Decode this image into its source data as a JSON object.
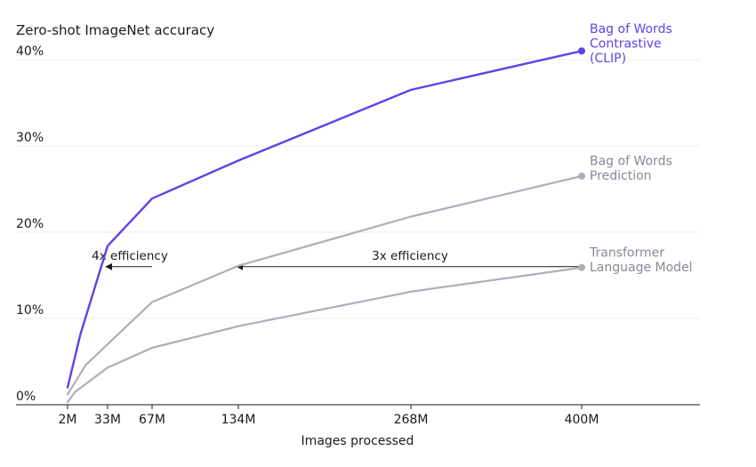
{
  "chart_data": {
    "type": "line",
    "title": "Zero-shot ImageNet accuracy",
    "xlabel": "Images processed",
    "ylabel": "",
    "x_ticks": [
      "2M",
      "33M",
      "67M",
      "134M",
      "268M",
      "400M"
    ],
    "y_ticks": [
      "0%",
      "10%",
      "20%",
      "30%",
      "40%"
    ],
    "ylim": [
      0,
      40
    ],
    "grid": true,
    "series": [
      {
        "name": "Bag of Words Contrastive (CLIP)",
        "name_lines": [
          "Bag of Words",
          "Contrastive",
          "(CLIP)"
        ],
        "color": "#5a45e8",
        "x": [
          2,
          12,
          33,
          67,
          134,
          268,
          400
        ],
        "y": [
          2,
          8.2,
          18.4,
          23.9,
          28.3,
          36.5,
          41
        ]
      },
      {
        "name": "Bag of Words Prediction",
        "name_lines": [
          "Bag of Words",
          "Prediction"
        ],
        "color": "#b0adbb",
        "x": [
          2,
          16,
          67,
          134,
          268,
          400
        ],
        "y": [
          1.2,
          4.6,
          11.9,
          16.1,
          21.8,
          26.5
        ]
      },
      {
        "name": "Transformer Language Model",
        "name_lines": [
          "Transformer",
          "Language Model"
        ],
        "color": "#b0adbb",
        "x": [
          2,
          8,
          33,
          67,
          134,
          268,
          400
        ],
        "y": [
          0.3,
          1.5,
          4.3,
          6.6,
          9.1,
          13.1,
          15.9
        ]
      }
    ],
    "annotations": [
      {
        "text": "4x efficiency",
        "from_x": 67,
        "to_x": 33,
        "y": 16
      },
      {
        "text": "3x efficiency",
        "from_x": 400,
        "to_x": 134,
        "y": 16
      }
    ]
  }
}
